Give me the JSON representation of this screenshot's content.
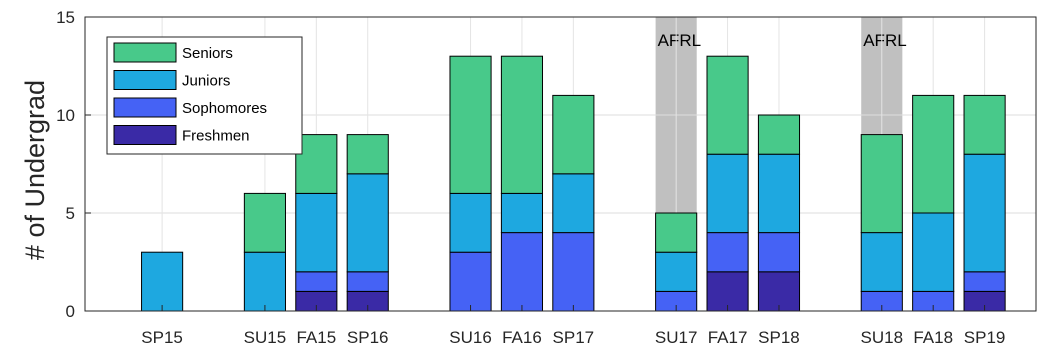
{
  "chart_data": {
    "type": "bar",
    "stacked": true,
    "title": "",
    "xlabel": "",
    "ylabel": "# of Undergrad",
    "ylim": [
      0,
      15
    ],
    "yticks": [
      0,
      5,
      10,
      15
    ],
    "grid": true,
    "legend_position": "top-left",
    "categories": [
      "SP15",
      "SU15",
      "FA15",
      "SP16",
      "SU16",
      "FA16",
      "SP17",
      "SU17",
      "FA17",
      "SP18",
      "SU18",
      "FA18",
      "SP19"
    ],
    "slots": [
      1,
      3,
      4,
      5,
      7,
      8,
      9,
      11,
      12,
      13,
      15,
      16,
      17
    ],
    "slot_range": [
      -0.5,
      18
    ],
    "series": [
      {
        "name": "Freshmen",
        "color": "#3a2aa6",
        "values": [
          0,
          0,
          1,
          1,
          0,
          0,
          0,
          0,
          2,
          2,
          0,
          0,
          1
        ]
      },
      {
        "name": "Sophomores",
        "color": "#4562f5",
        "values": [
          0,
          0,
          1,
          1,
          3,
          4,
          4,
          1,
          2,
          2,
          1,
          1,
          1
        ]
      },
      {
        "name": "Juniors",
        "color": "#1ea8e0",
        "values": [
          3,
          3,
          4,
          5,
          3,
          2,
          3,
          2,
          4,
          4,
          3,
          4,
          6
        ]
      },
      {
        "name": "Seniors",
        "color": "#48c98a",
        "values": [
          0,
          3,
          3,
          2,
          7,
          7,
          4,
          2,
          5,
          2,
          5,
          6,
          3
        ]
      }
    ],
    "legend_order": [
      "Seniors",
      "Juniors",
      "Sophomores",
      "Freshmen"
    ],
    "annotations": [
      {
        "text": "AFRL",
        "slot": 11,
        "color": "#c0c0c0"
      },
      {
        "text": "AFRL",
        "slot": 15,
        "color": "#c0c0c0"
      }
    ]
  }
}
